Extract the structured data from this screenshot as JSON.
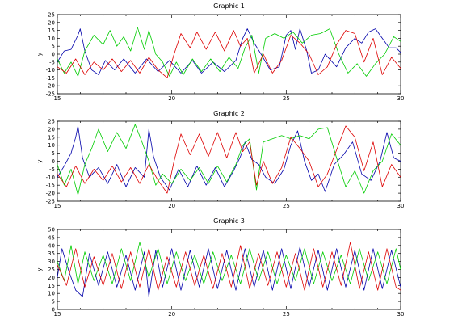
{
  "figure": {
    "background": "#ffffff"
  },
  "chart_data": [
    {
      "type": "line",
      "title": "Graphic 1",
      "xlabel": "",
      "ylabel": "y",
      "xlim": [
        15,
        30
      ],
      "ylim": [
        -25,
        25
      ],
      "xticks": [
        15,
        20,
        25,
        30
      ],
      "yticks": [
        -25,
        -20,
        -15,
        -10,
        -5,
        0,
        5,
        10,
        15,
        20,
        25
      ],
      "grid": false,
      "series": [
        {
          "color": "#0000aa",
          "x": [
            15.0,
            15.3,
            15.6,
            15.9,
            16.0,
            16.2,
            16.5,
            16.8,
            17.1,
            17.5,
            17.9,
            18.4,
            18.9,
            19.4,
            19.9,
            20.4,
            20.9,
            21.3,
            21.8,
            22.3,
            22.8,
            23.1,
            23.3,
            23.6,
            23.9,
            24.3,
            24.7,
            25.0,
            25.2,
            25.4,
            25.6,
            25.9,
            26.1,
            26.4,
            26.7,
            27.2,
            27.6,
            28.0,
            28.3,
            28.6,
            28.9,
            29.2,
            29.5,
            29.8,
            30.0
          ],
          "y": [
            -5,
            2,
            3,
            12,
            16,
            2,
            -10,
            -13,
            -4,
            -10,
            -3,
            -12,
            -3,
            -11,
            -4,
            -12,
            -4,
            -12,
            -5,
            -11,
            -4,
            10,
            16,
            7,
            0,
            -10,
            -8,
            12,
            15,
            3,
            16,
            2,
            -12,
            -10,
            0,
            -8,
            4,
            10,
            7,
            14,
            16,
            10,
            4,
            4,
            1
          ]
        },
        {
          "color": "#00cc00",
          "x": [
            15.0,
            15.3,
            15.6,
            15.9,
            16.2,
            16.6,
            17.0,
            17.3,
            17.6,
            17.9,
            18.2,
            18.5,
            18.8,
            19.0,
            19.3,
            19.6,
            19.9,
            20.2,
            20.5,
            20.9,
            21.3,
            21.7,
            22.1,
            22.5,
            22.9,
            23.2,
            23.5,
            23.8,
            24.1,
            24.5,
            24.9,
            25.3,
            25.7,
            26.1,
            26.5,
            26.9,
            27.3,
            27.7,
            28.1,
            28.5,
            28.9,
            29.3,
            29.7,
            30.0
          ],
          "y": [
            -3,
            -12,
            -5,
            -14,
            2,
            12,
            6,
            15,
            5,
            11,
            2,
            17,
            3,
            15,
            0,
            -5,
            -14,
            -5,
            -13,
            -3,
            -11,
            -3,
            -11,
            -2,
            -9,
            4,
            12,
            -12,
            10,
            13,
            10,
            14,
            7,
            12,
            13,
            16,
            0,
            -12,
            -6,
            -14,
            -6,
            0,
            11,
            8
          ]
        },
        {
          "color": "#dd0000",
          "x": [
            15.0,
            15.4,
            15.8,
            16.2,
            16.6,
            17.0,
            17.4,
            17.8,
            18.2,
            18.6,
            19.0,
            19.4,
            19.8,
            20.1,
            20.4,
            20.8,
            21.1,
            21.5,
            21.9,
            22.3,
            22.7,
            23.0,
            23.3,
            23.6,
            24.0,
            24.4,
            24.8,
            25.2,
            25.6,
            26.0,
            26.4,
            26.8,
            27.2,
            27.6,
            28.0,
            28.4,
            28.8,
            29.2,
            29.6,
            30.0
          ],
          "y": [
            -8,
            -12,
            -3,
            -13,
            -5,
            -10,
            -3,
            -11,
            -4,
            -12,
            -2,
            -10,
            -15,
            0,
            13,
            4,
            14,
            3,
            14,
            2,
            15,
            5,
            10,
            -12,
            0,
            -12,
            -4,
            12,
            7,
            0,
            -13,
            -8,
            6,
            15,
            13,
            -5,
            10,
            -13,
            -2,
            -9
          ]
        }
      ]
    },
    {
      "type": "line",
      "title": "Graphic 2",
      "xlabel": "",
      "ylabel": "y",
      "xlim": [
        15,
        30
      ],
      "ylim": [
        -25,
        25
      ],
      "xticks": [
        15,
        20,
        25,
        30
      ],
      "yticks": [
        -25,
        -20,
        -15,
        -10,
        -5,
        0,
        5,
        10,
        15,
        20,
        25
      ],
      "grid": false,
      "series": [
        {
          "color": "#0000aa",
          "x": [
            15.0,
            15.3,
            15.6,
            15.8,
            15.9,
            16.1,
            16.4,
            16.8,
            17.2,
            17.6,
            18.0,
            18.4,
            18.8,
            19.0,
            19.2,
            19.5,
            19.9,
            20.3,
            20.7,
            21.1,
            21.5,
            21.9,
            22.3,
            22.7,
            23.0,
            23.2,
            23.5,
            23.8,
            24.1,
            24.5,
            24.9,
            25.2,
            25.5,
            25.8,
            26.1,
            26.4,
            26.7,
            27.1,
            27.5,
            27.9,
            28.3,
            28.7,
            29.1,
            29.4,
            29.7,
            30.0
          ],
          "y": [
            -10,
            -3,
            5,
            15,
            22,
            2,
            -10,
            -4,
            -14,
            -2,
            -16,
            -4,
            -10,
            20,
            3,
            -10,
            -18,
            -5,
            -16,
            -3,
            -15,
            -4,
            -16,
            -6,
            3,
            12,
            1,
            -2,
            -10,
            -14,
            -5,
            10,
            19,
            0,
            -12,
            -8,
            -19,
            -2,
            4,
            12,
            -8,
            -12,
            0,
            18,
            2,
            0
          ]
        },
        {
          "color": "#00cc00",
          "x": [
            15.0,
            15.3,
            15.6,
            15.9,
            16.2,
            16.5,
            16.8,
            17.2,
            17.6,
            18.0,
            18.4,
            18.7,
            19.0,
            19.3,
            19.6,
            20.0,
            20.4,
            20.8,
            21.2,
            21.6,
            22.0,
            22.4,
            22.8,
            23.1,
            23.4,
            23.7,
            24.0,
            24.4,
            24.8,
            25.2,
            25.6,
            26.0,
            26.4,
            26.8,
            27.2,
            27.6,
            28.0,
            28.4,
            28.8,
            29.2,
            29.6,
            30.0
          ],
          "y": [
            -2,
            -15,
            -5,
            -21,
            -2,
            8,
            20,
            6,
            18,
            8,
            23,
            12,
            0,
            -15,
            -8,
            -14,
            -5,
            -12,
            -4,
            -14,
            -3,
            -13,
            -2,
            10,
            14,
            -18,
            12,
            14,
            16,
            14,
            16,
            14,
            20,
            21,
            2,
            -16,
            -6,
            -20,
            -6,
            0,
            17,
            10
          ]
        },
        {
          "color": "#dd0000",
          "x": [
            15.0,
            15.4,
            15.8,
            16.2,
            16.6,
            17.0,
            17.4,
            17.8,
            18.2,
            18.6,
            19.0,
            19.4,
            19.8,
            20.1,
            20.4,
            20.8,
            21.2,
            21.6,
            22.0,
            22.4,
            22.8,
            23.1,
            23.4,
            23.7,
            24.0,
            24.4,
            24.8,
            25.2,
            25.6,
            26.0,
            26.4,
            26.8,
            27.2,
            27.6,
            28.0,
            28.4,
            28.8,
            29.2,
            29.6,
            30.0
          ],
          "y": [
            -8,
            -16,
            -3,
            -14,
            -5,
            -12,
            -3,
            -13,
            -4,
            -14,
            -2,
            -12,
            -20,
            0,
            17,
            4,
            17,
            3,
            18,
            2,
            18,
            6,
            12,
            -15,
            0,
            -14,
            -4,
            15,
            8,
            0,
            -16,
            -8,
            7,
            22,
            15,
            -6,
            12,
            -16,
            -2,
            -10
          ]
        }
      ]
    },
    {
      "type": "line",
      "title": "Graphic 3",
      "xlabel": "",
      "ylabel": "y",
      "xlim": [
        15,
        30
      ],
      "ylim": [
        0,
        50
      ],
      "xticks": [
        15,
        20,
        25,
        30
      ],
      "yticks": [
        0,
        5,
        10,
        15,
        20,
        25,
        30,
        35,
        40,
        45,
        50
      ],
      "grid": false,
      "series": [
        {
          "color": "#0000aa",
          "x": [
            15.0,
            15.2,
            15.5,
            15.8,
            16.1,
            16.4,
            16.8,
            17.2,
            17.6,
            18.0,
            18.4,
            18.8,
            19.0,
            19.3,
            19.6,
            20.0,
            20.4,
            20.8,
            21.2,
            21.6,
            22.0,
            22.4,
            22.8,
            23.2,
            23.6,
            24.0,
            24.4,
            24.8,
            25.2,
            25.6,
            26.0,
            26.4,
            26.8,
            27.2,
            27.6,
            28.0,
            28.4,
            28.8,
            29.2,
            29.6,
            30.0
          ],
          "y": [
            20,
            38,
            24,
            12,
            8,
            35,
            15,
            36,
            14,
            34,
            12,
            36,
            8,
            37,
            14,
            38,
            12,
            37,
            14,
            38,
            13,
            37,
            12,
            38,
            14,
            37,
            12,
            38,
            13,
            39,
            14,
            37,
            12,
            38,
            14,
            37,
            12,
            38,
            13,
            37,
            14
          ]
        },
        {
          "color": "#00cc00",
          "x": [
            15.0,
            15.3,
            15.6,
            15.9,
            16.2,
            16.6,
            17.0,
            17.4,
            17.8,
            18.2,
            18.6,
            19.0,
            19.4,
            19.8,
            20.2,
            20.6,
            21.0,
            21.4,
            21.8,
            22.2,
            22.6,
            23.0,
            23.4,
            23.8,
            24.2,
            24.6,
            25.0,
            25.4,
            25.8,
            26.2,
            26.6,
            27.0,
            27.4,
            27.8,
            28.2,
            28.6,
            29.0,
            29.4,
            29.8,
            30.0
          ],
          "y": [
            30,
            18,
            40,
            16,
            36,
            18,
            34,
            16,
            38,
            18,
            42,
            20,
            38,
            16,
            36,
            18,
            34,
            16,
            36,
            18,
            34,
            16,
            38,
            18,
            36,
            16,
            34,
            18,
            38,
            16,
            36,
            18,
            34,
            16,
            38,
            18,
            36,
            16,
            38,
            25
          ]
        },
        {
          "color": "#dd0000",
          "x": [
            15.0,
            15.4,
            15.8,
            16.2,
            16.6,
            17.0,
            17.4,
            17.8,
            18.2,
            18.6,
            19.0,
            19.4,
            19.8,
            20.2,
            20.6,
            21.0,
            21.4,
            21.8,
            22.2,
            22.6,
            23.0,
            23.4,
            23.8,
            24.2,
            24.6,
            25.0,
            25.4,
            25.8,
            26.2,
            26.6,
            27.0,
            27.4,
            27.8,
            28.2,
            28.6,
            29.0,
            29.4,
            29.8,
            30.0
          ],
          "y": [
            28,
            15,
            38,
            14,
            33,
            15,
            35,
            13,
            36,
            14,
            38,
            12,
            33,
            14,
            36,
            15,
            34,
            13,
            35,
            14,
            40,
            13,
            35,
            15,
            36,
            14,
            35,
            12,
            38,
            14,
            36,
            15,
            42,
            13,
            36,
            12,
            38,
            14,
            12
          ]
        }
      ]
    }
  ]
}
